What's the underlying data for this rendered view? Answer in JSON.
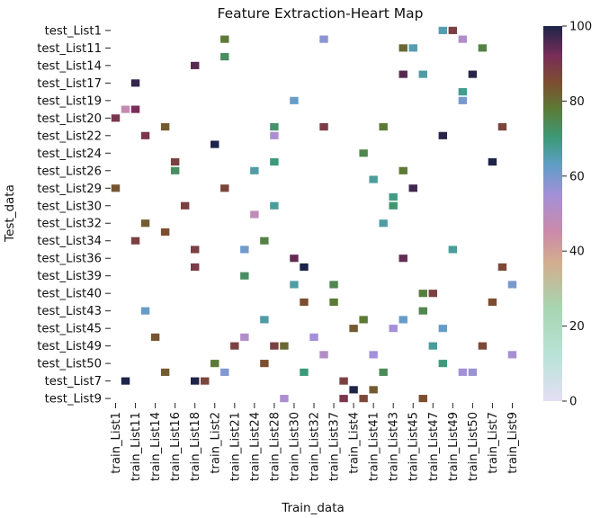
{
  "chart_data": {
    "type": "heatmap",
    "title": "Feature Extraction-Heart Map",
    "xlabel": "Train_data",
    "ylabel": "Test_data",
    "x_tick_labels": [
      "train_List1",
      "train_List11",
      "train_List14",
      "train_List16",
      "train_List18",
      "train_List2",
      "train_List21",
      "train_List24",
      "train_List28",
      "train_List30",
      "train_List32",
      "train_List37",
      "train_List4",
      "train_List41",
      "train_List43",
      "train_List45",
      "train_List47",
      "train_List49",
      "train_List50",
      "train_List7",
      "train_List9"
    ],
    "y_tick_labels": [
      "test_List1",
      "test_List11",
      "test_List14",
      "test_List17",
      "test_List19",
      "test_List20",
      "test_List22",
      "test_List24",
      "test_List26",
      "test_List29",
      "test_List30",
      "test_List32",
      "test_List34",
      "test_List36",
      "test_List39",
      "test_List40",
      "test_List43",
      "test_List45",
      "test_List49",
      "test_List50",
      "test_List7",
      "test_List9"
    ],
    "n_columns": 41,
    "n_rows": 43,
    "colorbar": {
      "min": 0,
      "max": 100,
      "ticks": [
        0,
        20,
        40,
        60,
        80,
        100
      ],
      "colormap": "cubehelix-like (light lavender to dark navy)"
    },
    "cells": [
      [
        33,
        0,
        65
      ],
      [
        34,
        0,
        88
      ],
      [
        11,
        1,
        78
      ],
      [
        21,
        1,
        58
      ],
      [
        35,
        1,
        52
      ],
      [
        29,
        2,
        81
      ],
      [
        30,
        2,
        65
      ],
      [
        37,
        2,
        76
      ],
      [
        11,
        3,
        73
      ],
      [
        8,
        4,
        95
      ],
      [
        29,
        5,
        95
      ],
      [
        31,
        5,
        66
      ],
      [
        36,
        5,
        99
      ],
      [
        2,
        6,
        98
      ],
      [
        35,
        7,
        68
      ],
      [
        18,
        8,
        62
      ],
      [
        35,
        8,
        60
      ],
      [
        1,
        9,
        47
      ],
      [
        2,
        9,
        92
      ],
      [
        0,
        10,
        90
      ],
      [
        5,
        11,
        83
      ],
      [
        16,
        11,
        72
      ],
      [
        21,
        11,
        89
      ],
      [
        27,
        11,
        78
      ],
      [
        39,
        11,
        87
      ],
      [
        3,
        12,
        90
      ],
      [
        33,
        12,
        99
      ],
      [
        16,
        12,
        53
      ],
      [
        10,
        13,
        100
      ],
      [
        25,
        14,
        75
      ],
      [
        6,
        15,
        88
      ],
      [
        16,
        15,
        70
      ],
      [
        38,
        15,
        100
      ],
      [
        6,
        16,
        73
      ],
      [
        14,
        16,
        66
      ],
      [
        29,
        16,
        78
      ],
      [
        26,
        17,
        67
      ],
      [
        0,
        18,
        84
      ],
      [
        11,
        18,
        87
      ],
      [
        30,
        18,
        97
      ],
      [
        28,
        19,
        69
      ],
      [
        7,
        20,
        88
      ],
      [
        28,
        20,
        71
      ],
      [
        16,
        20,
        67
      ],
      [
        14,
        21,
        48
      ],
      [
        3,
        22,
        83
      ],
      [
        27,
        22,
        66
      ],
      [
        5,
        23,
        85
      ],
      [
        2,
        24,
        88
      ],
      [
        15,
        24,
        76
      ],
      [
        8,
        25,
        88
      ],
      [
        34,
        25,
        67
      ],
      [
        13,
        25,
        61
      ],
      [
        29,
        26,
        94
      ],
      [
        19,
        27,
        100
      ],
      [
        8,
        27,
        89
      ],
      [
        13,
        28,
        73
      ],
      [
        18,
        29,
        66
      ],
      [
        32,
        30,
        88
      ],
      [
        31,
        30,
        77
      ],
      [
        19,
        31,
        85
      ],
      [
        38,
        31,
        85
      ],
      [
        22,
        31,
        78
      ],
      [
        3,
        32,
        62
      ],
      [
        31,
        32,
        75
      ],
      [
        15,
        33,
        66
      ],
      [
        29,
        33,
        62
      ],
      [
        25,
        33,
        78
      ],
      [
        24,
        34,
        83
      ],
      [
        28,
        34,
        55
      ],
      [
        33,
        34,
        62
      ],
      [
        13,
        35,
        52
      ],
      [
        4,
        35,
        84
      ],
      [
        12,
        36,
        88
      ],
      [
        16,
        36,
        88
      ],
      [
        17,
        36,
        81
      ],
      [
        32,
        36,
        67
      ],
      [
        37,
        36,
        86
      ],
      [
        21,
        37,
        51
      ],
      [
        26,
        37,
        55
      ],
      [
        40,
        37,
        54
      ],
      [
        10,
        38,
        78
      ],
      [
        15,
        38,
        85
      ],
      [
        33,
        38,
        70
      ],
      [
        5,
        39,
        83
      ],
      [
        11,
        39,
        59
      ],
      [
        19,
        39,
        70
      ],
      [
        27,
        39,
        74
      ],
      [
        36,
        39,
        56
      ],
      [
        35,
        39,
        55
      ],
      [
        8,
        40,
        100
      ],
      [
        9,
        40,
        87
      ],
      [
        24,
        41,
        100
      ],
      [
        31,
        42,
        85
      ],
      [
        26,
        41,
        83
      ],
      [
        17,
        42,
        53
      ],
      [
        23,
        42,
        90
      ],
      [
        25,
        42,
        86
      ],
      [
        18,
        26,
        94
      ],
      [
        22,
        29,
        75
      ],
      [
        39,
        27,
        86
      ],
      [
        40,
        29,
        60
      ],
      [
        1,
        40,
        100
      ],
      [
        23,
        40,
        88
      ],
      [
        20,
        35,
        55
      ]
    ]
  }
}
